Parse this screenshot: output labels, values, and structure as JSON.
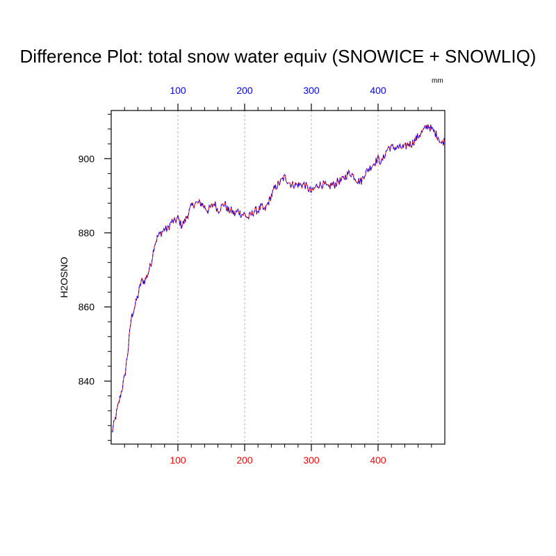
{
  "chart_data": {
    "type": "line",
    "title": "Difference Plot: total snow water equiv (SNOWICE + SNOWLIQ)",
    "units": "mm",
    "ylabel": "H2OSNO",
    "xlim": [
      0,
      500
    ],
    "ylim": [
      823,
      913
    ],
    "bottom_x_ticks": [
      100,
      200,
      300,
      400
    ],
    "top_x_ticks": [
      100,
      200,
      300,
      400
    ],
    "y_ticks": [
      840,
      860,
      880,
      900
    ],
    "grid": "vertical dashed lines at major x ticks",
    "colors": {
      "bottom_axis": "#ff0000",
      "top_axis": "#0000ff",
      "line_primary": "#ff0000",
      "line_secondary": "#0000ff"
    },
    "series": [
      {
        "x": [
          1,
          5,
          10,
          15,
          20,
          25,
          30,
          35,
          40,
          45,
          50,
          55,
          60,
          65,
          70,
          75,
          80,
          85,
          90,
          95,
          100,
          105,
          110,
          115,
          120,
          125,
          130,
          135,
          140,
          145,
          150,
          155,
          160,
          165,
          170,
          175,
          180,
          185,
          190,
          195,
          200,
          205,
          210,
          215,
          220,
          225,
          230,
          235,
          240,
          245,
          250,
          255,
          260,
          265,
          270,
          275,
          280,
          285,
          290,
          295,
          300,
          305,
          310,
          315,
          320,
          325,
          330,
          335,
          340,
          345,
          350,
          355,
          360,
          365,
          370,
          375,
          380,
          385,
          390,
          395,
          400,
          405,
          410,
          415,
          420,
          425,
          430,
          435,
          440,
          445,
          450,
          455,
          460,
          465,
          470,
          475,
          480,
          485,
          490,
          495,
          500
        ],
        "values": [
          826,
          829,
          833,
          837,
          841,
          848,
          857,
          860,
          863,
          867,
          867,
          869,
          872,
          877,
          879,
          880,
          881,
          881,
          883,
          883,
          884,
          882,
          883,
          885,
          887,
          888,
          888,
          888,
          887,
          886,
          887,
          888,
          886,
          887,
          888,
          886,
          886,
          885,
          886,
          885,
          885,
          884,
          885,
          886,
          886,
          887,
          886,
          888,
          890,
          892,
          893,
          894,
          895,
          894,
          893,
          893,
          893,
          893,
          893,
          892,
          891,
          892,
          893,
          893,
          893,
          892,
          893,
          893,
          894,
          894,
          895,
          896,
          896,
          895,
          894,
          894,
          896,
          897,
          898,
          899,
          900,
          899,
          901,
          903,
          903,
          903,
          903,
          903,
          903,
          904,
          904,
          905,
          906,
          907,
          908,
          909,
          908,
          907,
          906,
          904,
          905
        ]
      }
    ]
  }
}
